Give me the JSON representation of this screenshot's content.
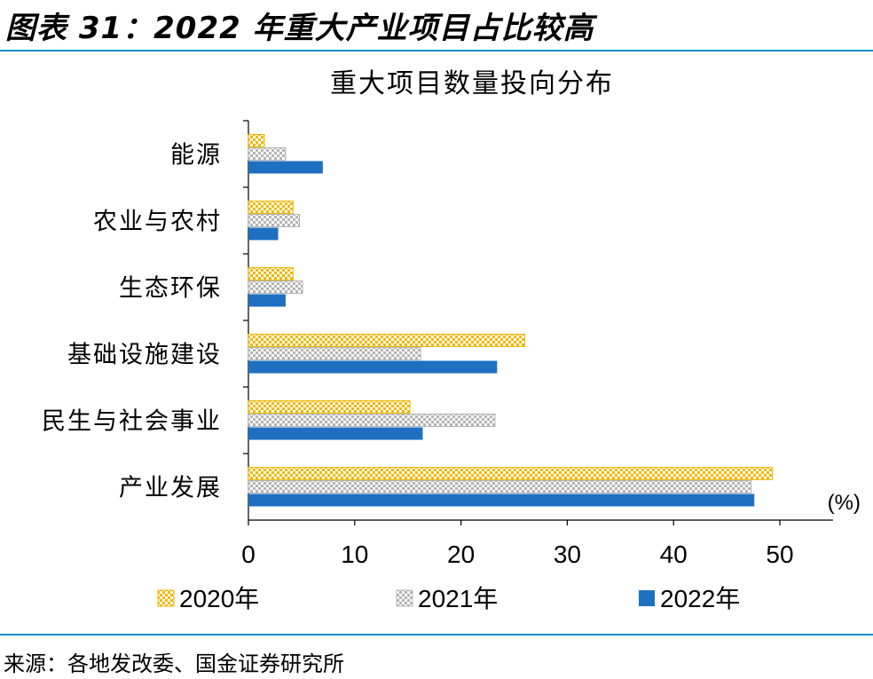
{
  "figure": {
    "title": "图表 31：2022 年重大产业项目占比较高",
    "source": "来源：各地发改委、国金证券研究所"
  },
  "colors": {
    "accent_line": "#0f8fce",
    "series_2020": "#f2b705",
    "series_2021": "#b4b4b4",
    "series_2022": "#1f6fc1"
  },
  "chart_data": {
    "type": "bar",
    "orientation": "horizontal",
    "title": "重大项目数量投向分布",
    "unit_label": "(%)",
    "categories": [
      "能源",
      "农业与农村",
      "生态环保",
      "基础设施建设",
      "民生与社会事业",
      "产业发展"
    ],
    "series": [
      {
        "name": "2020年",
        "values": [
          1.5,
          4.2,
          4.2,
          26.0,
          15.2,
          49.3
        ]
      },
      {
        "name": "2021年",
        "values": [
          3.5,
          4.8,
          5.1,
          16.2,
          23.2,
          47.3
        ]
      },
      {
        "name": "2022年",
        "values": [
          7.0,
          2.8,
          3.5,
          23.4,
          16.4,
          47.6
        ]
      }
    ],
    "xlim": [
      0,
      55
    ],
    "xticks": [
      0,
      10,
      20,
      30,
      40,
      50
    ],
    "grid": false,
    "legend_position": "bottom"
  }
}
